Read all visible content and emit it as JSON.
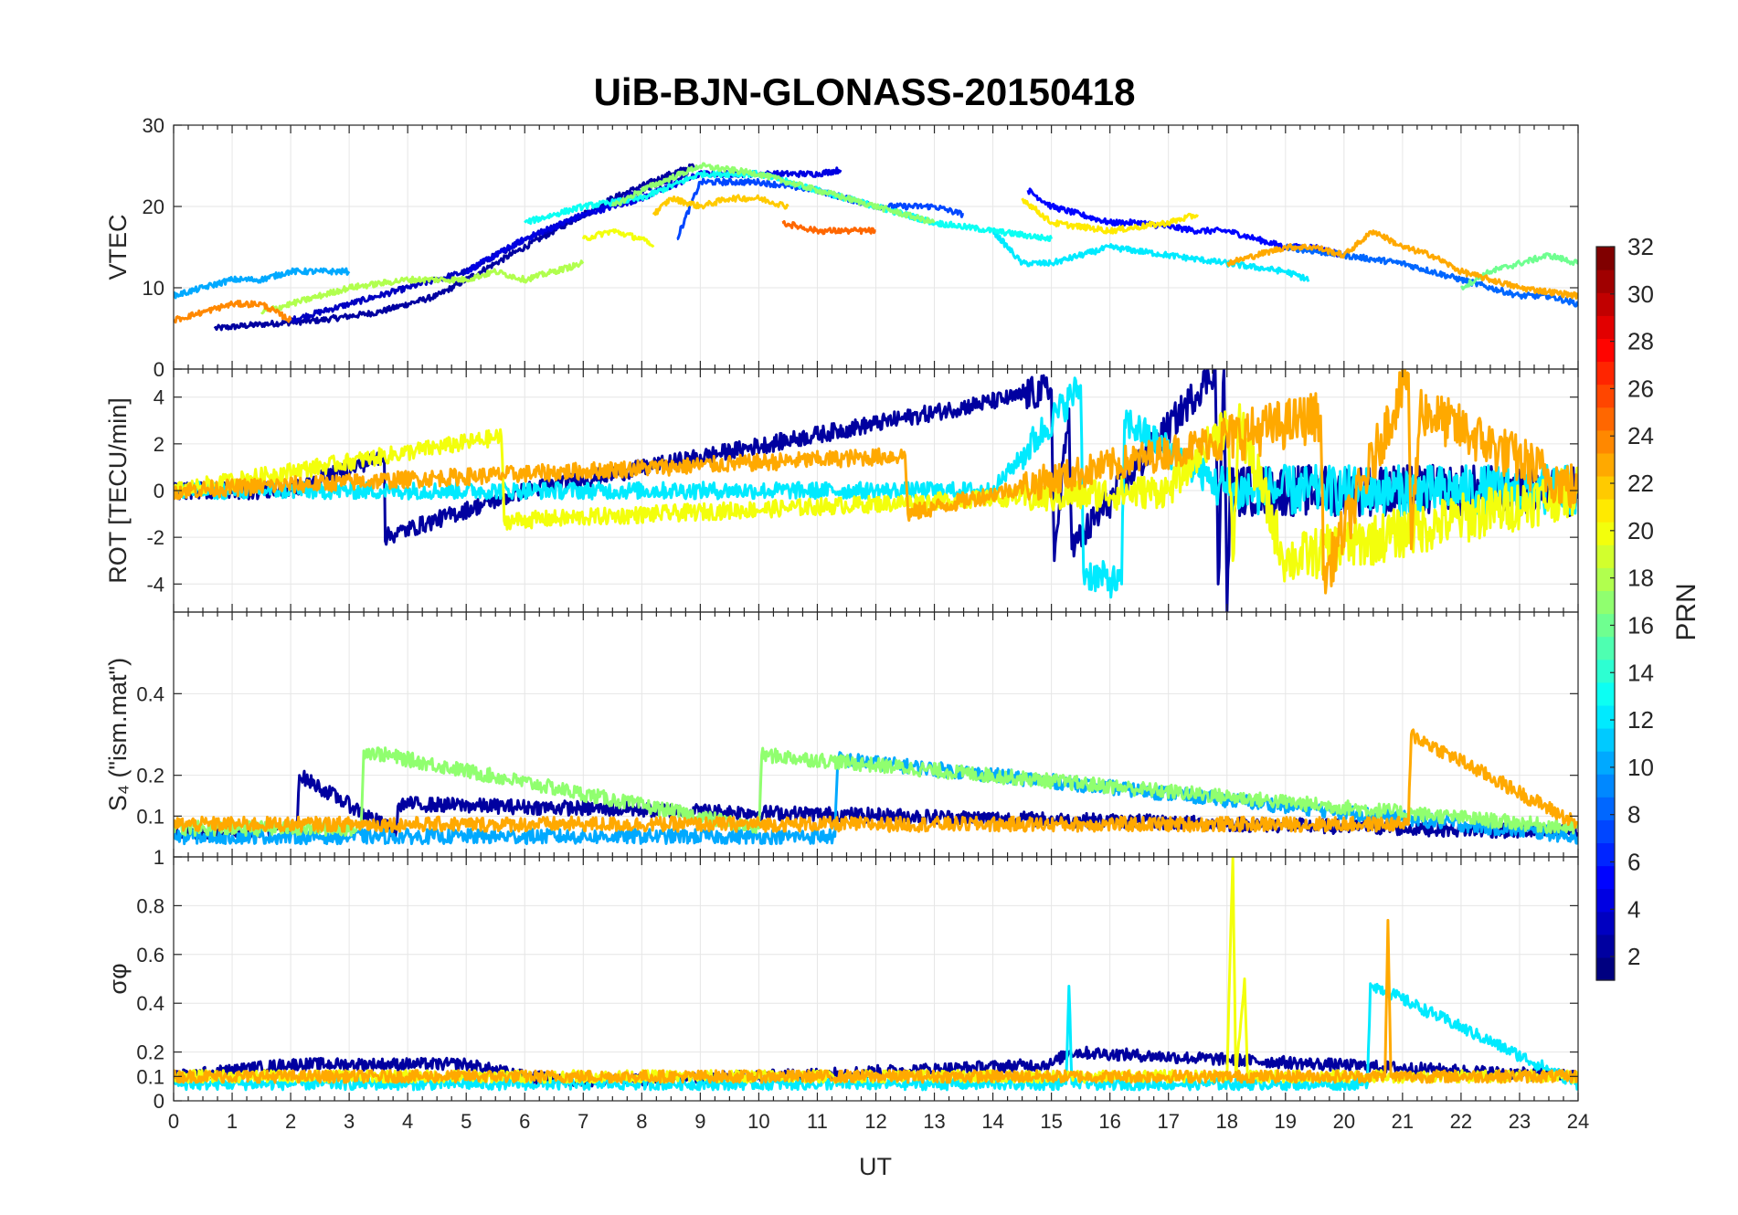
{
  "chart_data": {
    "type": "line",
    "title": "UiB-BJN-GLONASS-20150418",
    "xlabel": "UT",
    "x_ticks": [
      0,
      1,
      2,
      3,
      4,
      5,
      6,
      7,
      8,
      9,
      10,
      11,
      12,
      13,
      14,
      15,
      16,
      17,
      18,
      19,
      20,
      21,
      22,
      23,
      24
    ],
    "xlim": [
      0,
      24
    ],
    "grid": true,
    "colorbar": {
      "label": "PRN",
      "ticks": [
        2,
        4,
        6,
        8,
        10,
        12,
        14,
        16,
        18,
        20,
        22,
        24,
        26,
        28,
        30,
        32
      ],
      "range": [
        1,
        32
      ],
      "colormap": "jet",
      "placement": "right"
    },
    "panels": [
      {
        "ylabel": "VTEC",
        "ylim": [
          0,
          30
        ],
        "y_ticks": [
          0,
          10,
          20,
          30
        ],
        "series": [
          {
            "prn": 2,
            "x": [
              0.7,
              1.5,
              2.5,
              3.5,
              4.5,
              5.5,
              6.5,
              7.5,
              8.5,
              8.9
            ],
            "y": [
              5,
              5.5,
              6,
              7,
              9,
              13,
              17,
              21,
              24,
              25
            ]
          },
          {
            "prn": 3,
            "x": [
              2,
              3,
              4,
              5,
              6,
              7,
              8,
              8.8
            ],
            "y": [
              6,
              8,
              10,
              12,
              16,
              19,
              22,
              24
            ]
          },
          {
            "prn": 4,
            "x": [
              5,
              6,
              7,
              8,
              9,
              10,
              11,
              11.4
            ],
            "y": [
              12,
              16,
              19,
              21,
              24,
              24,
              24,
              24.5
            ]
          },
          {
            "prn": 5,
            "x": [
              14.6,
              15,
              15.5,
              16,
              16.5,
              17,
              17.5,
              18,
              18.5,
              19,
              19.5,
              20
            ],
            "y": [
              22,
              20,
              19,
              18,
              18,
              17.5,
              17,
              17,
              16,
              15,
              15,
              14
            ]
          },
          {
            "prn": 7,
            "x": [
              8.6,
              9,
              10,
              11,
              12,
              13,
              13.5
            ],
            "y": [
              16,
              23,
              23,
              22,
              20,
              20,
              19
            ]
          },
          {
            "prn": 8,
            "x": [
              19,
              20,
              21,
              22,
              22.5,
              23,
              23.5,
              24
            ],
            "y": [
              15,
              14,
              13,
              11,
              10,
              9,
              9,
              8
            ]
          },
          {
            "prn": 10,
            "x": [
              0,
              0.5,
              1,
              1.5,
              2,
              2.5,
              3
            ],
            "y": [
              9,
              10,
              11,
              11,
              12,
              12,
              12
            ]
          },
          {
            "prn": 12,
            "x": [
              14,
              14.5,
              15,
              16,
              17,
              18,
              19,
              19.4
            ],
            "y": [
              17,
              13,
              13,
              15,
              14,
              13,
              12,
              11
            ]
          },
          {
            "prn": 13,
            "x": [
              6,
              7,
              8,
              9,
              10,
              11,
              12,
              13,
              14,
              15
            ],
            "y": [
              18,
              20,
              21,
              24,
              24,
              22,
              20,
              18,
              17,
              16
            ]
          },
          {
            "prn": 16,
            "x": [
              22,
              22.5,
              23,
              23.5,
              24
            ],
            "y": [
              10,
              12,
              13,
              14,
              13
            ]
          },
          {
            "prn": 17,
            "x": [
              7.5,
              8,
              9,
              10,
              11,
              12,
              13
            ],
            "y": [
              20,
              22,
              25,
              24,
              22,
              20,
              18
            ]
          },
          {
            "prn": 18,
            "x": [
              1.5,
              2,
              3,
              4,
              5,
              5.5,
              6,
              7
            ],
            "y": [
              7,
              8,
              10,
              11,
              11,
              12,
              11,
              13
            ]
          },
          {
            "prn": 20,
            "x": [
              7,
              7.5,
              8,
              8.2
            ],
            "y": [
              16,
              17,
              16,
              15
            ]
          },
          {
            "prn": 21,
            "x": [
              14.5,
              15,
              16,
              17,
              17.5
            ],
            "y": [
              21,
              18,
              17,
              18,
              19
            ]
          },
          {
            "prn": 22,
            "x": [
              8.2,
              8.5,
              9,
              9.5,
              10,
              10.5
            ],
            "y": [
              19,
              21,
              20,
              21,
              21,
              20
            ]
          },
          {
            "prn": 23,
            "x": [
              18,
              18.5,
              19,
              19.5,
              20,
              20.5,
              21,
              21.5,
              22,
              23,
              24
            ],
            "y": [
              13,
              14,
              15,
              15,
              14,
              17,
              15,
              14,
              12,
              10,
              9
            ]
          },
          {
            "prn": 24,
            "x": [
              0,
              0.5,
              1,
              1.5,
              2
            ],
            "y": [
              6,
              7,
              8,
              8,
              6
            ]
          },
          {
            "prn": 25,
            "x": [
              10.4,
              11,
              11.5,
              12
            ],
            "y": [
              18,
              17,
              17,
              17
            ]
          }
        ]
      },
      {
        "ylabel": "ROT [TECU/min]",
        "ylim": [
          -5.2,
          5.2
        ],
        "y_ticks": [
          -4,
          -2,
          0,
          2,
          4
        ],
        "series": [
          {
            "prn": 2,
            "x": [
              0,
              2,
              3.6,
              3.6,
              6,
              15,
              15.05,
              15.3,
              15.35,
              17.8,
              17.85,
              17.95,
              18,
              18.05,
              24
            ],
            "y": [
              0,
              0,
              1.5,
              -2,
              0,
              4.3,
              -3,
              3.5,
              -2.5,
              5.2,
              -4,
              5.2,
              -5.2,
              0,
              0
            ]
          },
          {
            "prn": 12,
            "x": [
              0,
              14,
              15.5,
              15.55,
              16.2,
              16.25,
              18,
              24
            ],
            "y": [
              0,
              0,
              4.5,
              -3.5,
              -4,
              3,
              0,
              0
            ]
          },
          {
            "prn": 20,
            "x": [
              0,
              5.6,
              5.65,
              17,
              18,
              18.1,
              18.2,
              19,
              24
            ],
            "y": [
              0,
              2.3,
              -1.3,
              0,
              3,
              -3,
              3,
              -3,
              0
            ]
          },
          {
            "prn": 23,
            "x": [
              0,
              12.5,
              12.55,
              19.6,
              19.65,
              21.1,
              21.15,
              21.3,
              24
            ],
            "y": [
              0,
              1.5,
              -1,
              3.2,
              -3.8,
              5.0,
              -2.5,
              3.5,
              0
            ]
          }
        ]
      },
      {
        "ylabel": "S₄ (\"ism.mat\")",
        "ylim": [
          0,
          0.6
        ],
        "y_ticks": [
          0.1,
          0.2,
          0.4
        ],
        "series": [
          {
            "prn": 2,
            "x": [
              0,
              2.1,
              2.15,
              3.8,
              3.85,
              24
            ],
            "y": [
              0.06,
              0.07,
              0.2,
              0.06,
              0.13,
              0.06
            ]
          },
          {
            "prn": 10,
            "x": [
              0,
              11.3,
              11.35,
              24
            ],
            "y": [
              0.05,
              0.05,
              0.24,
              0.05
            ]
          },
          {
            "prn": 17,
            "x": [
              0,
              3.2,
              3.25,
              10,
              10.05,
              24
            ],
            "y": [
              0.07,
              0.07,
              0.26,
              0.07,
              0.25,
              0.07
            ]
          },
          {
            "prn": 23,
            "x": [
              0,
              21.1,
              21.15,
              24
            ],
            "y": [
              0.08,
              0.08,
              0.3,
              0.08
            ]
          }
        ]
      },
      {
        "ylabel": "σφ",
        "ylim": [
          0,
          1.0
        ],
        "y_ticks": [
          0,
          0.1,
          0.2,
          0.4,
          0.6,
          0.8,
          1
        ],
        "series": [
          {
            "prn": 2,
            "x": [
              0,
              2,
              3,
              4,
              5,
              6,
              7,
              10,
              15,
              15.3,
              24
            ],
            "y": [
              0.1,
              0.15,
              0.15,
              0.15,
              0.15,
              0.1,
              0.08,
              0.1,
              0.15,
              0.2,
              0.1
            ]
          },
          {
            "prn": 12,
            "x": [
              0,
              15.25,
              15.3,
              15.35,
              20.4,
              20.45,
              24
            ],
            "y": [
              0.07,
              0.07,
              0.47,
              0.07,
              0.07,
              0.48,
              0.07
            ]
          },
          {
            "prn": 20,
            "x": [
              0,
              18,
              18.1,
              18.15,
              18.3,
              18.35,
              24
            ],
            "y": [
              0.1,
              0.1,
              1.0,
              0.1,
              0.5,
              0.1,
              0.1
            ]
          },
          {
            "prn": 23,
            "x": [
              0,
              20.7,
              20.75,
              20.8,
              24
            ],
            "y": [
              0.1,
              0.1,
              0.74,
              0.1,
              0.1
            ]
          }
        ]
      }
    ]
  }
}
